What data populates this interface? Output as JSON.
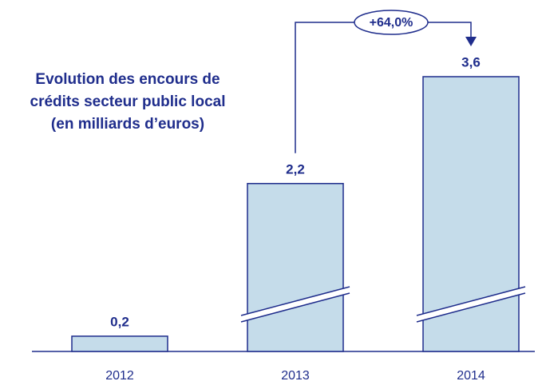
{
  "chart_data": {
    "type": "bar",
    "title": [
      "Evolution des encours de",
      "crédits secteur public local",
      "(en milliards d’euros)"
    ],
    "categories": [
      "2012",
      "2013",
      "2014"
    ],
    "values": [
      0.2,
      2.2,
      3.6
    ],
    "value_labels": [
      "0,2",
      "2,2",
      "3,6"
    ],
    "color": "#c5dcea",
    "annotation": "+64,0%"
  }
}
